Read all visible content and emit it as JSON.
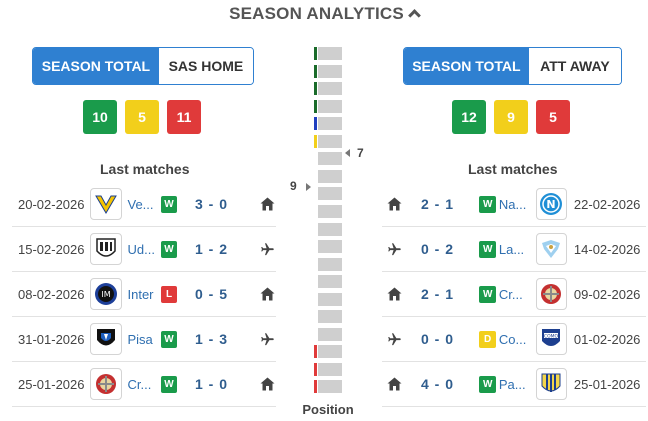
{
  "title": "SEASON ANALYTICS",
  "home": {
    "tab_active": "SEASON TOTAL",
    "tab_other": "SAS HOME",
    "wins": "10",
    "draws": "5",
    "losses": "11",
    "last_title": "Last matches",
    "matches": [
      {
        "date": "20-02-2026",
        "team": "Ve...",
        "result": "W",
        "score": "3 - 0",
        "venue": "home",
        "logo": "verona-logo"
      },
      {
        "date": "15-02-2026",
        "team": "Ud...",
        "result": "W",
        "score": "1 - 2",
        "venue": "away",
        "logo": "udinese-logo"
      },
      {
        "date": "08-02-2026",
        "team": "Inter",
        "result": "L",
        "score": "0 - 5",
        "venue": "home",
        "logo": "inter-logo"
      },
      {
        "date": "31-01-2026",
        "team": "Pisa",
        "result": "W",
        "score": "1 - 3",
        "venue": "away",
        "logo": "pisa-logo"
      },
      {
        "date": "25-01-2026",
        "team": "Cr...",
        "result": "W",
        "score": "1 - 0",
        "venue": "home",
        "logo": "cremonese-logo"
      }
    ]
  },
  "away": {
    "tab_active": "SEASON TOTAL",
    "tab_other": "ATT AWAY",
    "wins": "12",
    "draws": "9",
    "losses": "5",
    "last_title": "Last matches",
    "matches": [
      {
        "date": "22-02-2026",
        "team": "Na...",
        "result": "W",
        "score": "2 - 1",
        "venue": "home",
        "logo": "napoli-logo"
      },
      {
        "date": "14-02-2026",
        "team": "La...",
        "result": "W",
        "score": "0 - 2",
        "venue": "away",
        "logo": "lazio-logo"
      },
      {
        "date": "09-02-2026",
        "team": "Cr...",
        "result": "W",
        "score": "2 - 1",
        "venue": "home",
        "logo": "cremonese-logo"
      },
      {
        "date": "01-02-2026",
        "team": "Co...",
        "result": "D",
        "score": "0 - 0",
        "venue": "away",
        "logo": "como-logo"
      },
      {
        "date": "25-01-2026",
        "team": "Pa...",
        "result": "W",
        "score": "4 - 0",
        "venue": "home",
        "logo": "parma-logo"
      }
    ]
  },
  "standings": {
    "label": "Position",
    "total": 20,
    "home_position": "9",
    "away_position": "7",
    "home_position_value": 9,
    "away_position_value": 7,
    "zone_colors": [
      "#1a6b2a",
      "#1a6b2a",
      "#1a6b2a",
      "#1a6b2a",
      "#1f3fbf",
      "#f2cf1b",
      "",
      "",
      "",
      "",
      "",
      "",
      "",
      "",
      "",
      "",
      "",
      "#e03a3a",
      "#e03a3a",
      "#e03a3a"
    ]
  }
}
